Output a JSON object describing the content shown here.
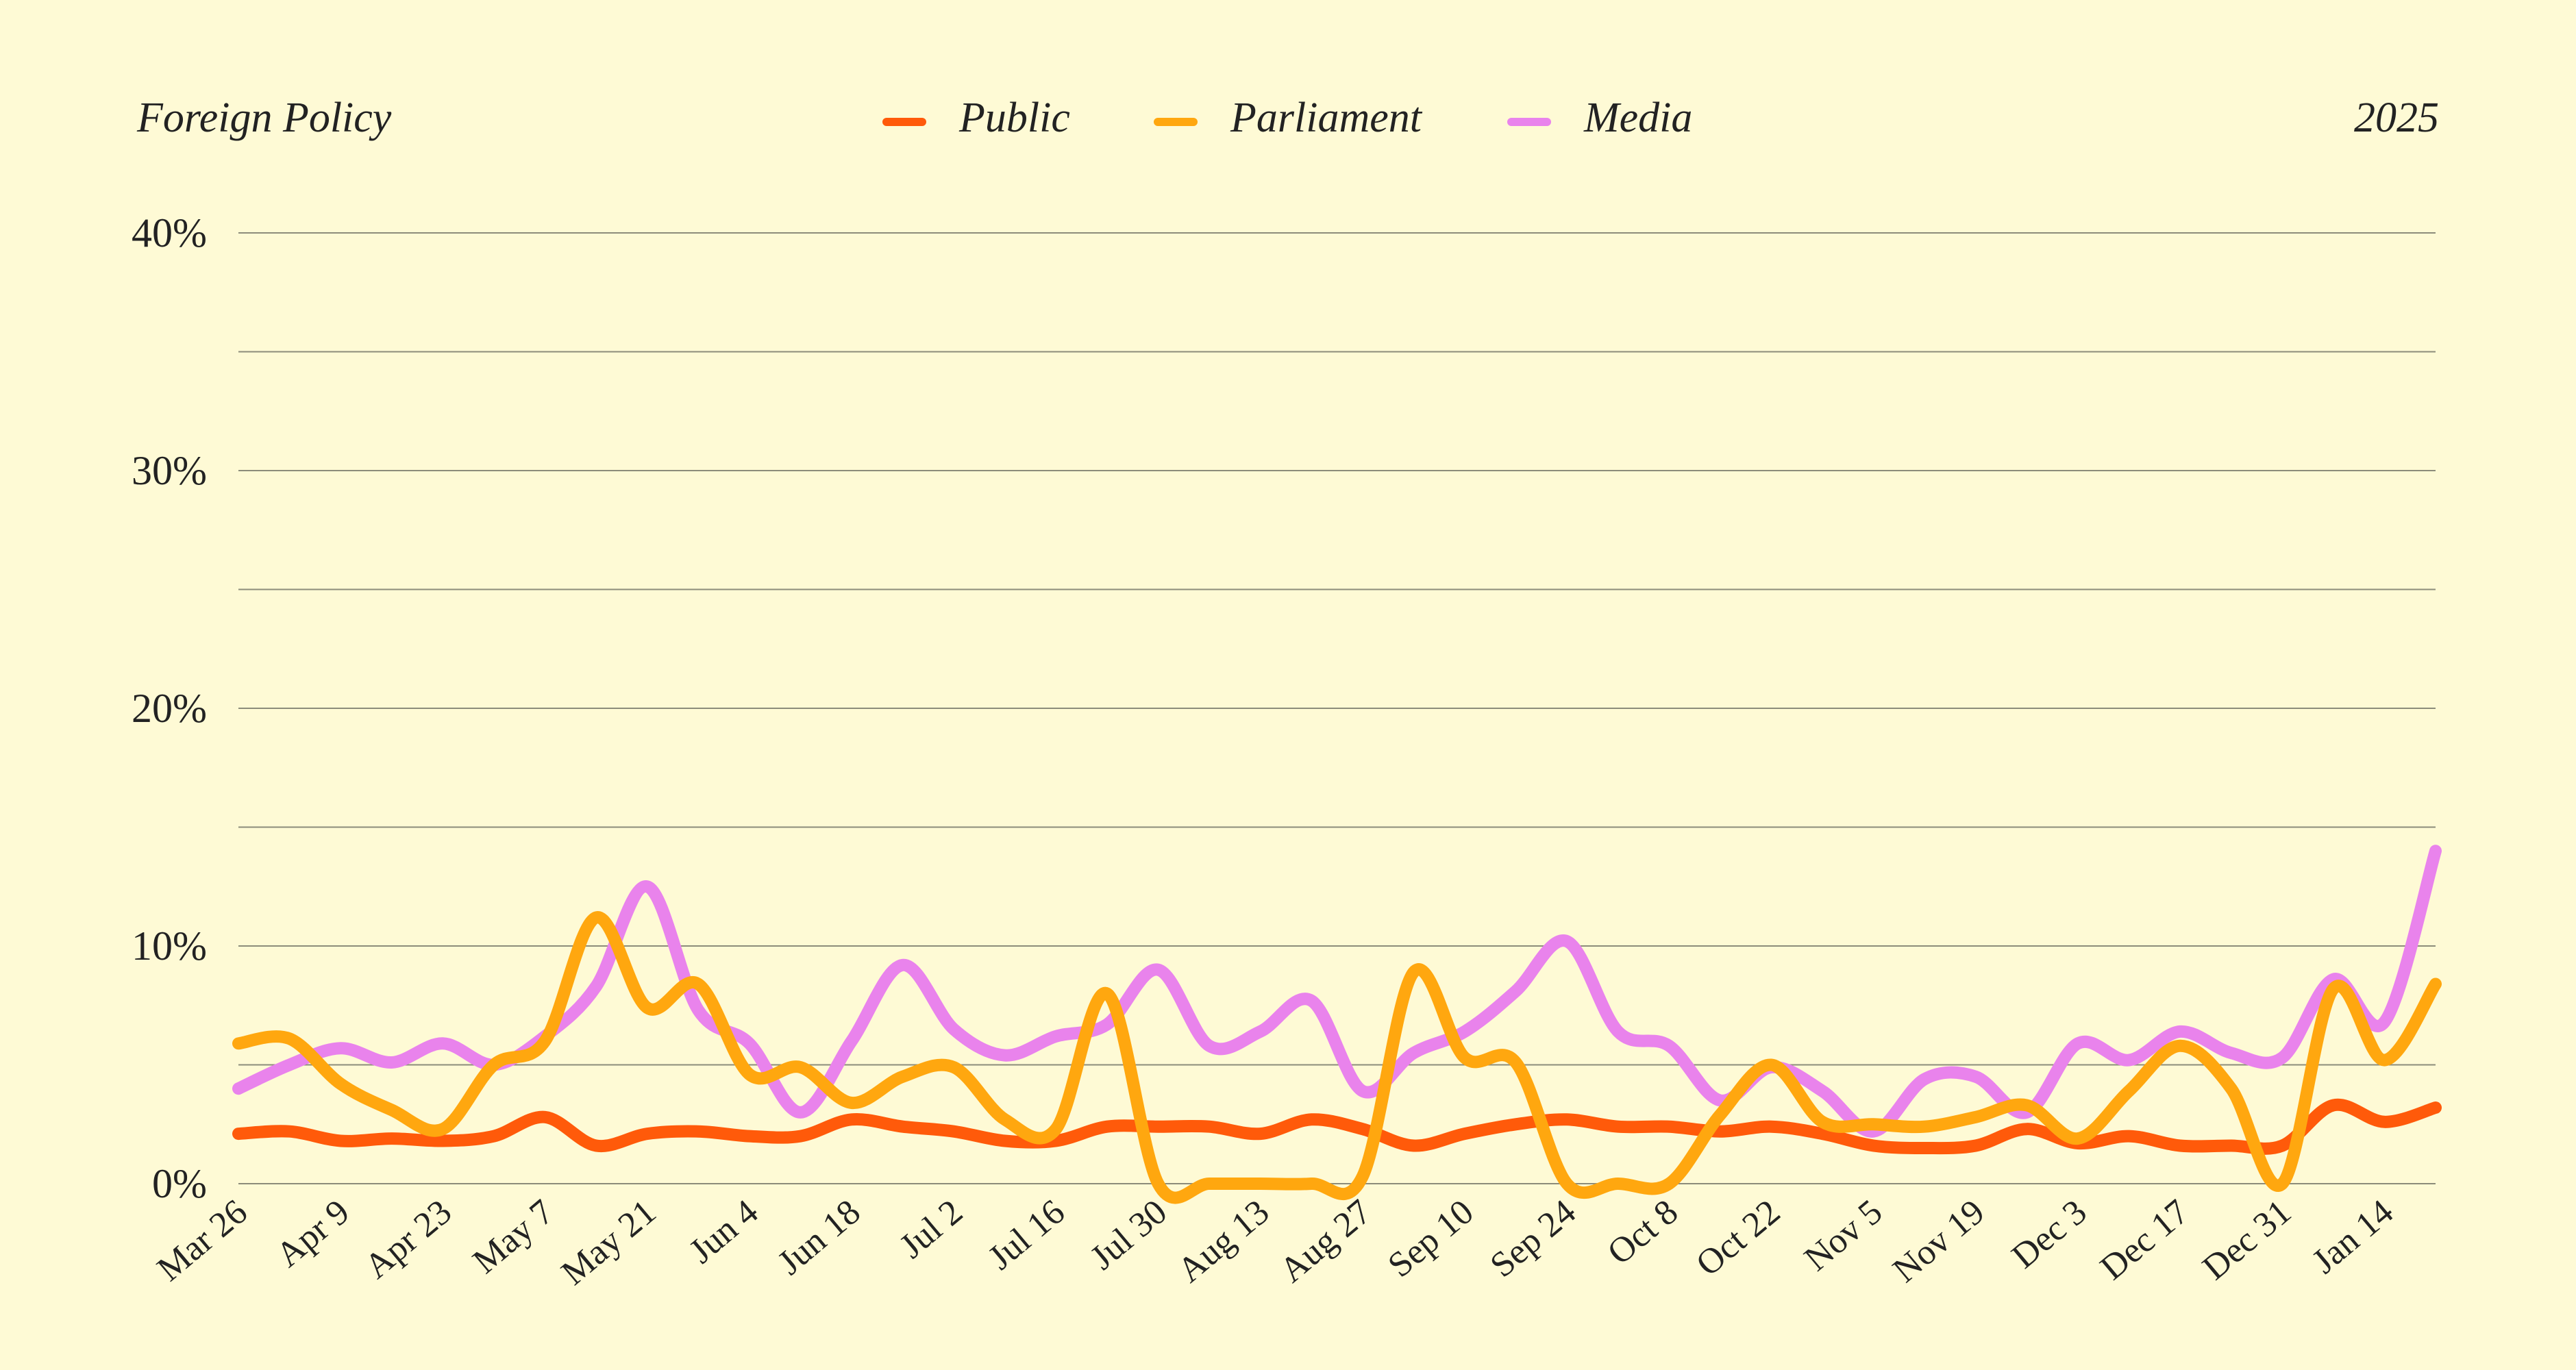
{
  "header": {
    "left_title": "Foreign Policy",
    "right_label": "2025"
  },
  "chart_data": {
    "type": "line",
    "yticks": [
      "0%",
      "10%",
      "20%",
      "30%",
      "40%"
    ],
    "ylim": [
      0,
      40
    ],
    "grid": true,
    "legend_position": "top-center",
    "x_tick_labels": [
      "Mar 26",
      "Apr 9",
      "Apr 23",
      "May 7",
      "May 21",
      "Jun 4",
      "Jun 18",
      "Jul 2",
      "Jul 16",
      "Jul 30",
      "Aug 13",
      "Aug 27",
      "Sep 10",
      "Sep 24",
      "Oct 8",
      "Oct 22",
      "Nov 5",
      "Nov 19",
      "Dec 3",
      "Dec 17",
      "Dec 31",
      "Jan 14"
    ],
    "x": [
      "Mar 26",
      "Apr 2",
      "Apr 9",
      "Apr 16",
      "Apr 23",
      "Apr 30",
      "May 7",
      "May 14",
      "May 21",
      "May 28",
      "Jun 4",
      "Jun 11",
      "Jun 18",
      "Jun 25",
      "Jul 2",
      "Jul 9",
      "Jul 16",
      "Jul 23",
      "Jul 30",
      "Aug 6",
      "Aug 13",
      "Aug 20",
      "Aug 27",
      "Sep 3",
      "Sep 10",
      "Sep 17",
      "Sep 24",
      "Oct 1",
      "Oct 8",
      "Oct 15",
      "Oct 22",
      "Oct 29",
      "Nov 5",
      "Nov 12",
      "Nov 19",
      "Nov 26",
      "Dec 3",
      "Dec 10",
      "Dec 17",
      "Dec 24",
      "Dec 31",
      "Jan 7",
      "Jan 14",
      "Jan 21"
    ],
    "series": [
      {
        "name": "Public",
        "color": "#ff5a0a",
        "values": [
          2.1,
          2.2,
          1.8,
          1.9,
          1.8,
          2.0,
          2.8,
          1.6,
          2.1,
          2.2,
          2.0,
          2.0,
          2.7,
          2.4,
          2.2,
          1.8,
          1.8,
          2.4,
          2.4,
          2.4,
          2.1,
          2.7,
          2.3,
          1.6,
          2.1,
          2.5,
          2.7,
          2.4,
          2.4,
          2.2,
          2.4,
          2.1,
          1.6,
          1.5,
          1.6,
          2.3,
          1.7,
          2.0,
          1.6,
          1.6,
          1.6,
          3.3,
          2.6,
          3.2
        ]
      },
      {
        "name": "Parliament",
        "color": "#ffa70f",
        "values": [
          5.9,
          6.1,
          4.2,
          3.1,
          2.3,
          5.0,
          6.0,
          11.2,
          7.4,
          8.4,
          4.6,
          4.9,
          3.4,
          4.5,
          4.9,
          2.7,
          2.3,
          8.0,
          0.0,
          0.0,
          0.0,
          0.0,
          0.3,
          8.9,
          5.3,
          5.1,
          0.0,
          0.0,
          0.0,
          2.9,
          5.0,
          2.6,
          2.5,
          2.4,
          2.8,
          3.3,
          1.9,
          3.9,
          5.8,
          4.0,
          0.0,
          8.2,
          5.2,
          8.4
        ]
      },
      {
        "name": "Media",
        "color": "#e983ec",
        "values": [
          4.0,
          5.0,
          5.7,
          5.1,
          5.9,
          5.0,
          6.2,
          8.3,
          12.5,
          7.3,
          5.9,
          3.0,
          6.0,
          9.2,
          6.5,
          5.4,
          6.2,
          6.7,
          9.0,
          5.8,
          6.4,
          7.7,
          3.9,
          5.5,
          6.4,
          8.1,
          10.2,
          6.4,
          5.8,
          3.5,
          4.9,
          3.9,
          2.2,
          4.4,
          4.5,
          3.0,
          5.9,
          5.2,
          6.4,
          5.5,
          5.3,
          8.6,
          6.8,
          14.0
        ]
      }
    ]
  }
}
